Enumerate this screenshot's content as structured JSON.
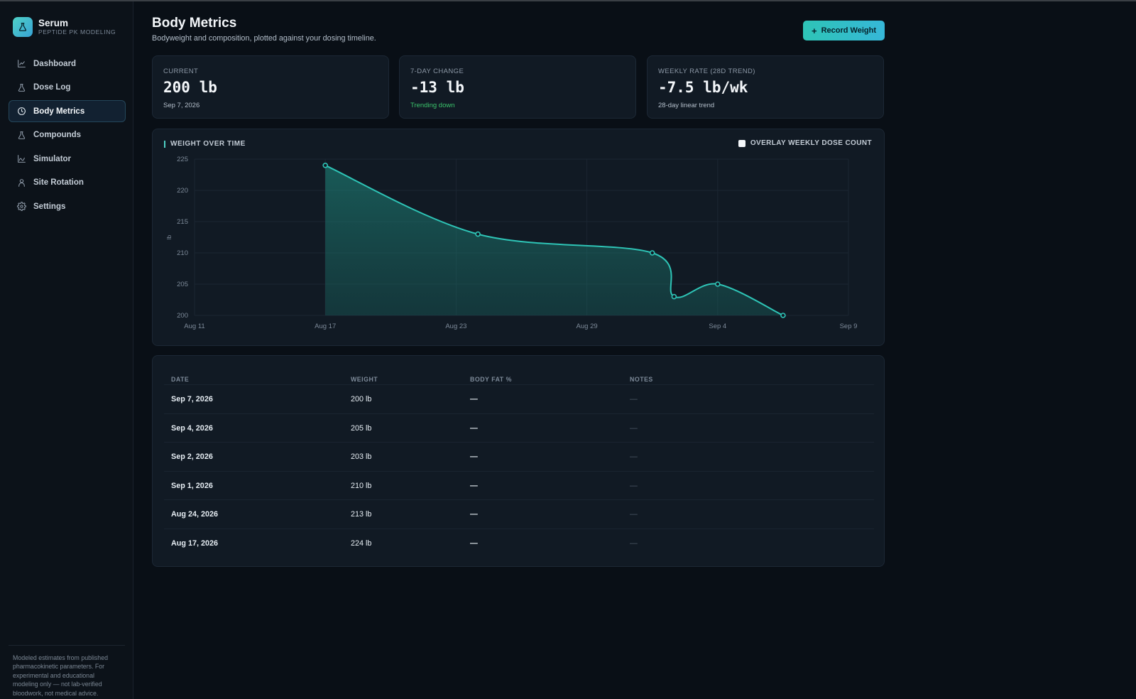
{
  "app": {
    "name": "Serum",
    "subtitle": "PEPTIDE PK MODELING"
  },
  "sidebar": {
    "items": [
      {
        "label": "Dashboard",
        "icon": "line-chart-icon",
        "active": false
      },
      {
        "label": "Dose Log",
        "icon": "flask-icon",
        "active": false
      },
      {
        "label": "Body Metrics",
        "icon": "clock-icon",
        "active": true
      },
      {
        "label": "Compounds",
        "icon": "flask-icon",
        "active": false
      },
      {
        "label": "Simulator",
        "icon": "wave-chart-icon",
        "active": false
      },
      {
        "label": "Site Rotation",
        "icon": "person-icon",
        "active": false
      },
      {
        "label": "Settings",
        "icon": "gear-icon",
        "active": false
      }
    ],
    "disclaimer": "Modeled estimates from published pharmacokinetic parameters. For experimental and educational modeling only — not lab-verified bloodwork, not medical advice."
  },
  "header": {
    "title": "Body Metrics",
    "subtitle": "Bodyweight and composition, plotted against your dosing timeline.",
    "record_button": "Record Weight"
  },
  "stats": [
    {
      "label": "CURRENT",
      "value": "200 lb",
      "note": "Sep 7, 2026",
      "note_status": "neutral"
    },
    {
      "label": "7-DAY CHANGE",
      "value": "-13 lb",
      "note": "Trending down",
      "note_status": "good"
    },
    {
      "label": "WEEKLY RATE (28D TREND)",
      "value": "-7.5 lb/wk",
      "note": "28-day linear trend",
      "note_status": "neutral"
    }
  ],
  "chart": {
    "title": "WEIGHT OVER TIME",
    "overlay_label": "OVERLAY WEEKLY DOSE COUNT",
    "overlay_checked": false
  },
  "chart_data": {
    "type": "area",
    "title": "WEIGHT OVER TIME",
    "xlabel": "",
    "ylabel": "lb",
    "x_ticks": [
      "Aug 11",
      "Aug 17",
      "Aug 23",
      "Aug 29",
      "Sep 4",
      "Sep 9"
    ],
    "y_ticks": [
      200,
      205,
      210,
      215,
      220,
      225
    ],
    "ylim": [
      200,
      225
    ],
    "xlim": [
      "2026-08-11",
      "2026-09-10"
    ],
    "grid": true,
    "series": [
      {
        "color": "#2ec4b6",
        "points": [
          {
            "x": "2026-08-17",
            "y": 224
          },
          {
            "x": "2026-08-24",
            "y": 213
          },
          {
            "x": "2026-09-01",
            "y": 210
          },
          {
            "x": "2026-09-02",
            "y": 203
          },
          {
            "x": "2026-09-04",
            "y": 205
          },
          {
            "x": "2026-09-07",
            "y": 200
          }
        ]
      }
    ]
  },
  "table": {
    "headers": [
      "DATE",
      "WEIGHT",
      "BODY FAT %",
      "NOTES"
    ],
    "rows": [
      {
        "date": "Sep 7, 2026",
        "weight": "200 lb",
        "body_fat": "—",
        "notes": "—"
      },
      {
        "date": "Sep 4, 2026",
        "weight": "205 lb",
        "body_fat": "—",
        "notes": "—"
      },
      {
        "date": "Sep 2, 2026",
        "weight": "203 lb",
        "body_fat": "—",
        "notes": "—"
      },
      {
        "date": "Sep 1, 2026",
        "weight": "210 lb",
        "body_fat": "—",
        "notes": "—"
      },
      {
        "date": "Aug 24, 2026",
        "weight": "213 lb",
        "body_fat": "—",
        "notes": "—"
      },
      {
        "date": "Aug 17, 2026",
        "weight": "224 lb",
        "body_fat": "—",
        "notes": "—"
      }
    ]
  }
}
